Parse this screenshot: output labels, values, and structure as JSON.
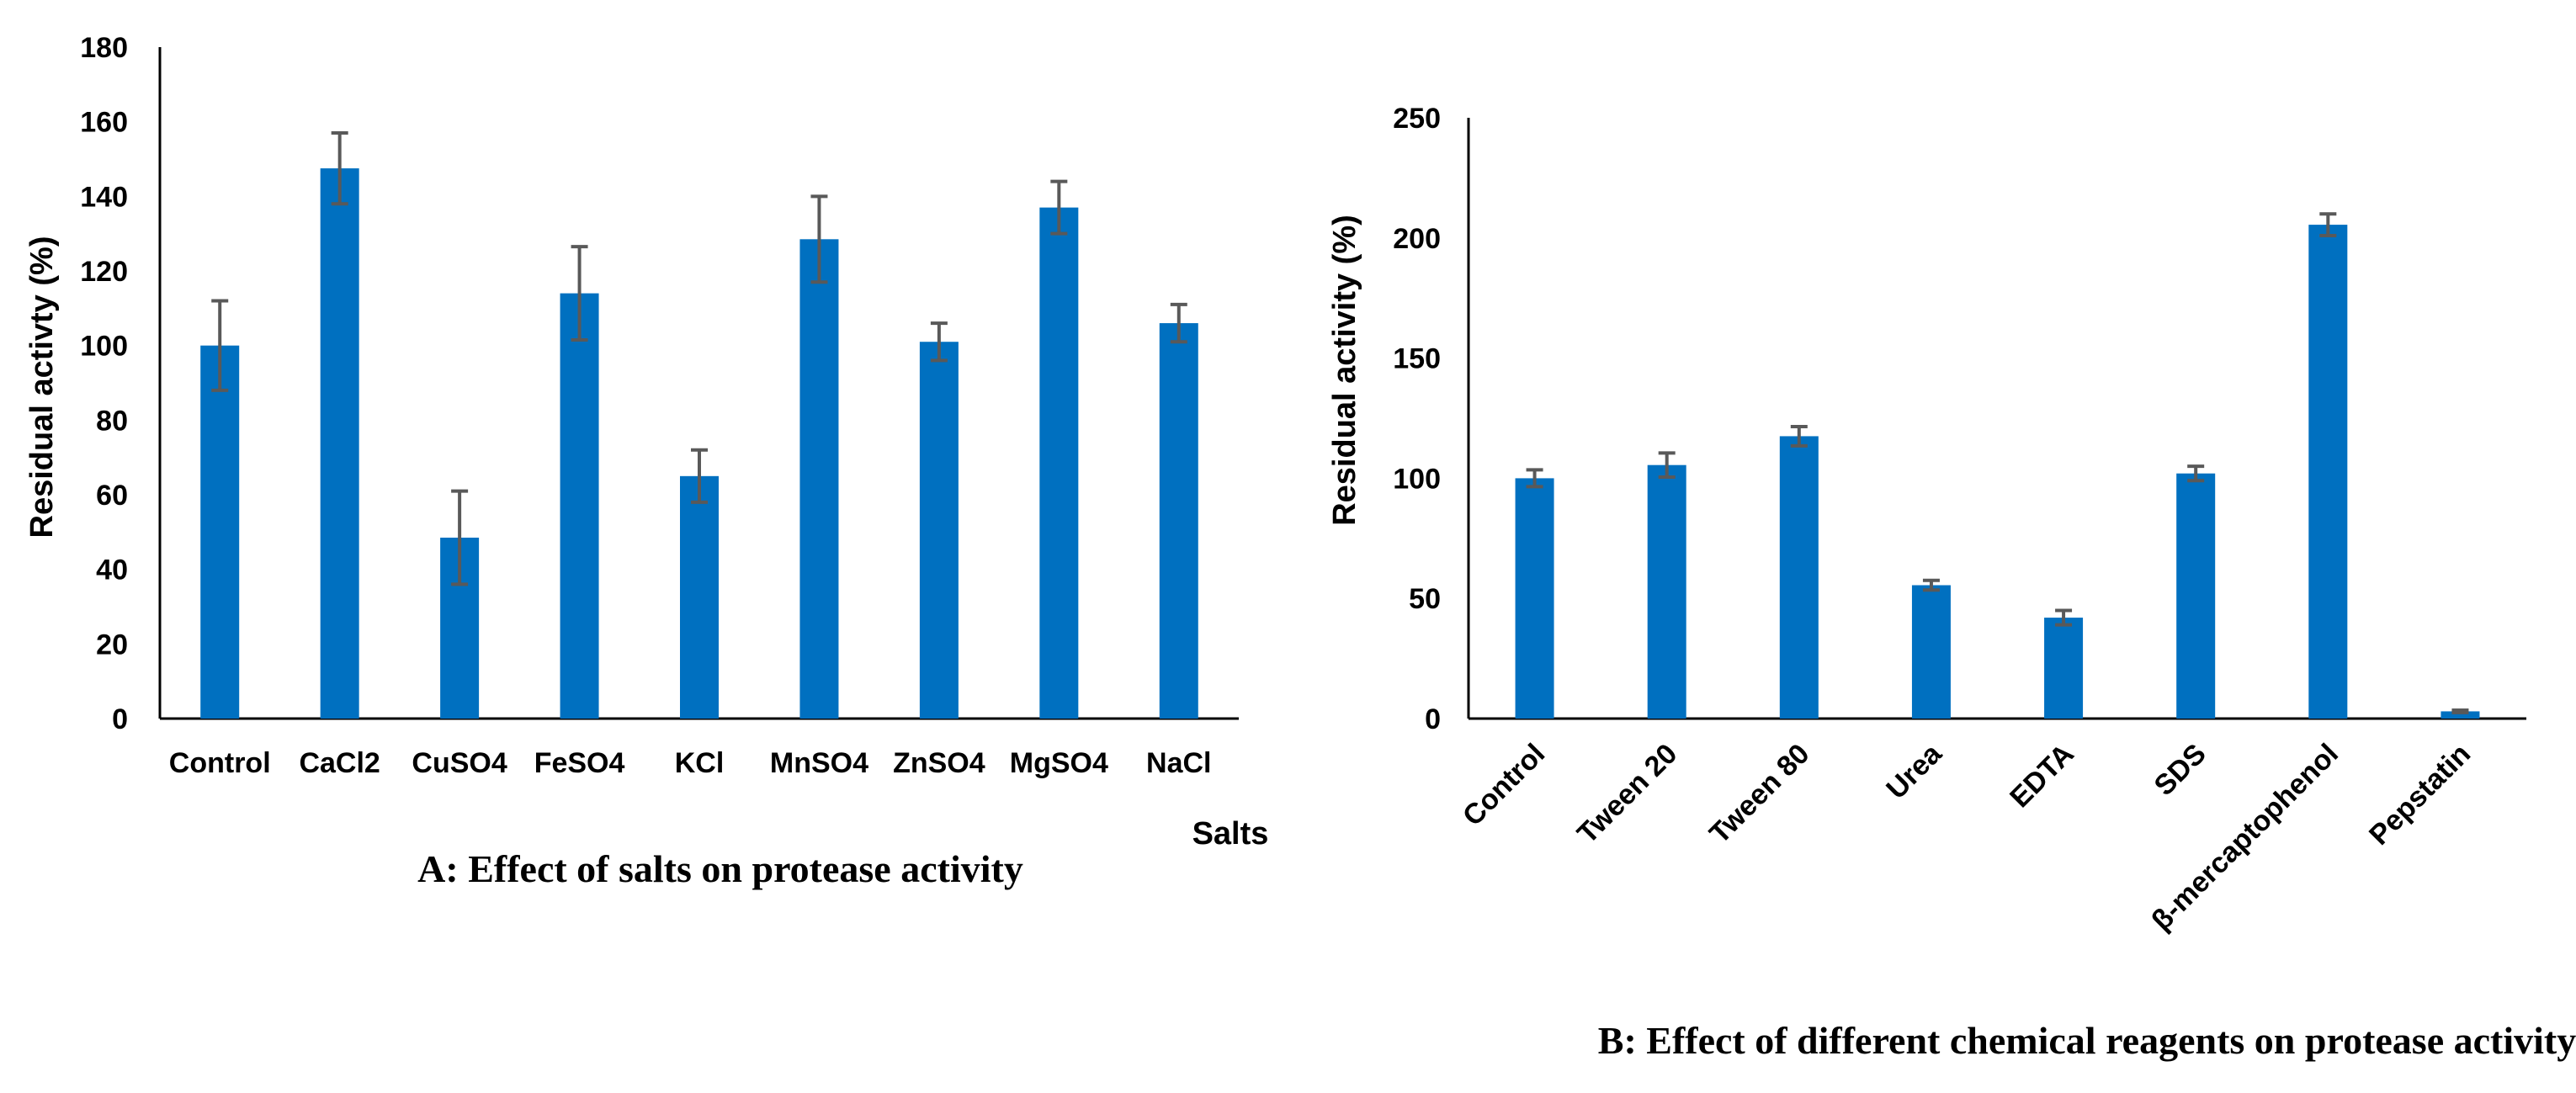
{
  "chart_data": [
    {
      "type": "bar",
      "title": "",
      "caption": "A: Effect of salts on protease activity",
      "xlabel": "Salts",
      "ylabel": "Residual activty (%)",
      "ylim": [
        0,
        180
      ],
      "yticks": [
        0,
        20,
        40,
        60,
        80,
        100,
        120,
        140,
        160,
        180
      ],
      "categories": [
        "Control",
        "CaCl2",
        "CuSO4",
        "FeSO4",
        "KCl",
        "MnSO4",
        "ZnSO4",
        "MgSO4",
        "NaCl"
      ],
      "values": [
        100,
        147.5,
        48.5,
        114,
        65,
        128.5,
        101,
        137,
        106
      ],
      "errors": [
        12,
        9.5,
        12.5,
        12.5,
        7,
        11.5,
        5,
        7,
        5
      ],
      "grid": false,
      "color": "#0070c0"
    },
    {
      "type": "bar",
      "title": "",
      "caption": "B: Effect of different chemical reagents on protease activity",
      "xlabel": "",
      "ylabel": "Residual activity (%)",
      "ylim": [
        0,
        250
      ],
      "yticks": [
        0,
        50,
        100,
        150,
        200,
        250
      ],
      "categories": [
        "Control",
        "Tween 20",
        "Tween 80",
        "Urea",
        "EDTA",
        "SDS",
        "β-mercaptophenol",
        "Pepstatin"
      ],
      "values": [
        100,
        105.5,
        117.5,
        55.5,
        42,
        102,
        205.5,
        3
      ],
      "errors": [
        3.5,
        5,
        4,
        2,
        3,
        3,
        4.5,
        0.5
      ],
      "grid": false,
      "color": "#0070c0"
    }
  ]
}
